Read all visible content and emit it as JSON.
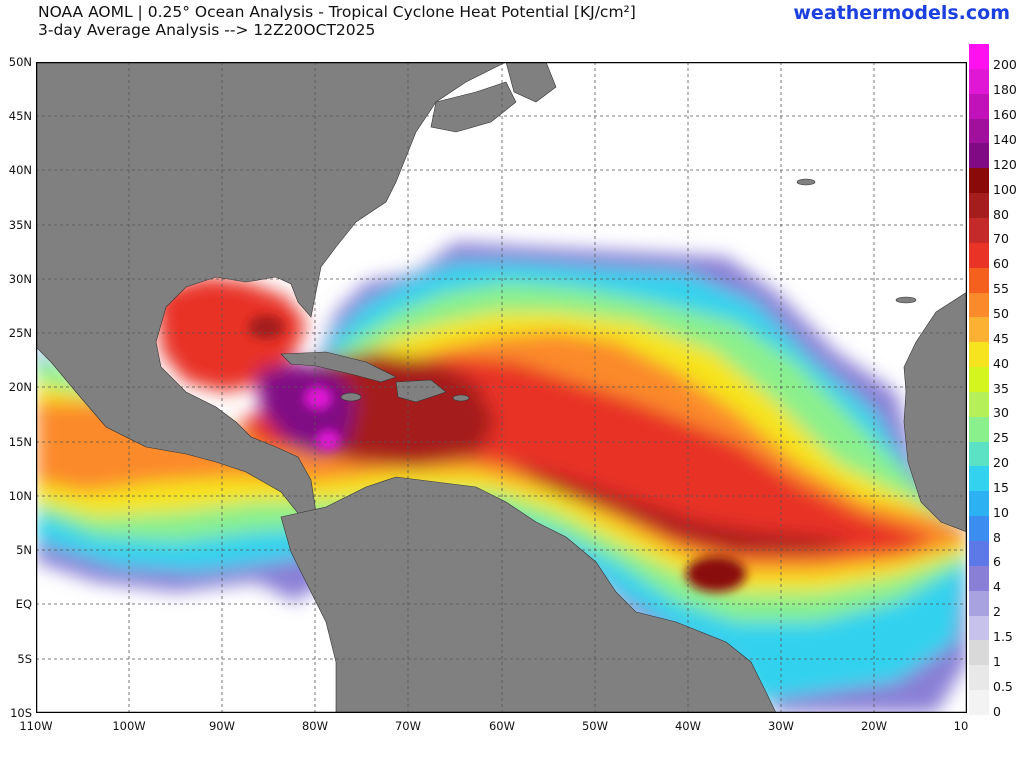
{
  "header": {
    "title_line1": "NOAA AOML | 0.25° Ocean Analysis - Tropical Cyclone Heat Potential [KJ/cm²]",
    "title_line2": "3-day Average Analysis --> 12Z20OCT2025",
    "site": "weathermodels.com"
  },
  "axes": {
    "y_ticks": [
      "50N",
      "45N",
      "40N",
      "35N",
      "30N",
      "25N",
      "20N",
      "15N",
      "10N",
      "5N",
      "EQ",
      "5S",
      "10S"
    ],
    "x_ticks": [
      "110W",
      "100W",
      "90W",
      "80W",
      "70W",
      "60W",
      "50W",
      "40W",
      "30W",
      "20W",
      "10"
    ]
  },
  "colorbar": {
    "labels": [
      "200",
      "180",
      "160",
      "140",
      "120",
      "100",
      "80",
      "70",
      "60",
      "55",
      "50",
      "45",
      "40",
      "35",
      "30",
      "25",
      "20",
      "15",
      "10",
      "8",
      "6",
      "4",
      "2",
      "1.5",
      "1",
      "0.5",
      "0"
    ],
    "colors": [
      "#ff10ee",
      "#e018d6",
      "#c012b8",
      "#a0109c",
      "#800a84",
      "#8a0a0a",
      "#a51d1d",
      "#c52a2a",
      "#e83326",
      "#f5601f",
      "#fb8a2a",
      "#fcb132",
      "#f6e41f",
      "#d5f51e",
      "#b5f058",
      "#8af08c",
      "#5be2c4",
      "#33d2ee",
      "#2cb1f2",
      "#3b8ef0",
      "#5d79e8",
      "#8a7fd6",
      "#a9a2e0",
      "#c6c2ec",
      "#d9d9d9",
      "#e8e8e8",
      "#f3f3f3"
    ]
  },
  "colors": {
    "land": "#808080",
    "ocean_no_data": "#ffffff",
    "title_link": "#1c3fe0"
  }
}
